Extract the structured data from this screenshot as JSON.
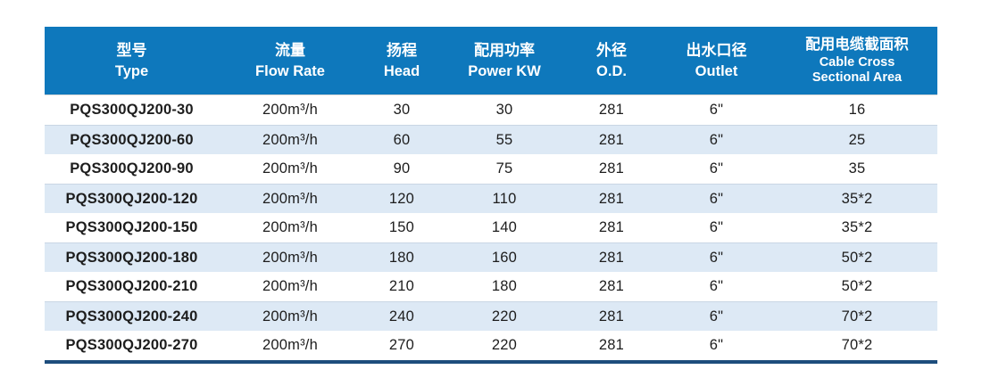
{
  "table": {
    "columns": [
      {
        "id": "type",
        "zh": "型号",
        "en": "Type"
      },
      {
        "id": "flow",
        "zh": "流量",
        "en": "Flow Rate"
      },
      {
        "id": "head",
        "zh": "扬程",
        "en": "Head"
      },
      {
        "id": "power",
        "zh": "配用功率",
        "en": "Power KW"
      },
      {
        "id": "od",
        "zh": "外径",
        "en": "O.D."
      },
      {
        "id": "outlet",
        "zh": "出水口径",
        "en": "Outlet"
      },
      {
        "id": "cable",
        "zh": "配用电缆截面积",
        "en": "Cable Cross Sectional Area",
        "en_lines": [
          "Cable Cross",
          "Sectional Area"
        ]
      }
    ],
    "rows": [
      [
        "PQS300QJ200-30",
        "200m³/h",
        "30",
        "30",
        "281",
        "6\"",
        "16"
      ],
      [
        "PQS300QJ200-60",
        "200m³/h",
        "60",
        "55",
        "281",
        "6\"",
        "25"
      ],
      [
        "PQS300QJ200-90",
        "200m³/h",
        "90",
        "75",
        "281",
        "6\"",
        "35"
      ],
      [
        "PQS300QJ200-120",
        "200m³/h",
        "120",
        "110",
        "281",
        "6\"",
        "35*2"
      ],
      [
        "PQS300QJ200-150",
        "200m³/h",
        "150",
        "140",
        "281",
        "6\"",
        "35*2"
      ],
      [
        "PQS300QJ200-180",
        "200m³/h",
        "180",
        "160",
        "281",
        "6\"",
        "50*2"
      ],
      [
        "PQS300QJ200-210",
        "200m³/h",
        "210",
        "180",
        "281",
        "6\"",
        "50*2"
      ],
      [
        "PQS300QJ200-240",
        "200m³/h",
        "240",
        "220",
        "281",
        "6\"",
        "70*2"
      ],
      [
        "PQS300QJ200-270",
        "200m³/h",
        "270",
        "220",
        "281",
        "6\"",
        "70*2"
      ]
    ],
    "colors": {
      "header_bg": "#0e78bc",
      "header_text": "#ffffff",
      "row_bg": "#ffffff",
      "row_alt_bg": "#dde9f5",
      "bottom_rule": "#1d4d7c",
      "body_text": "#1d1d1d"
    }
  }
}
